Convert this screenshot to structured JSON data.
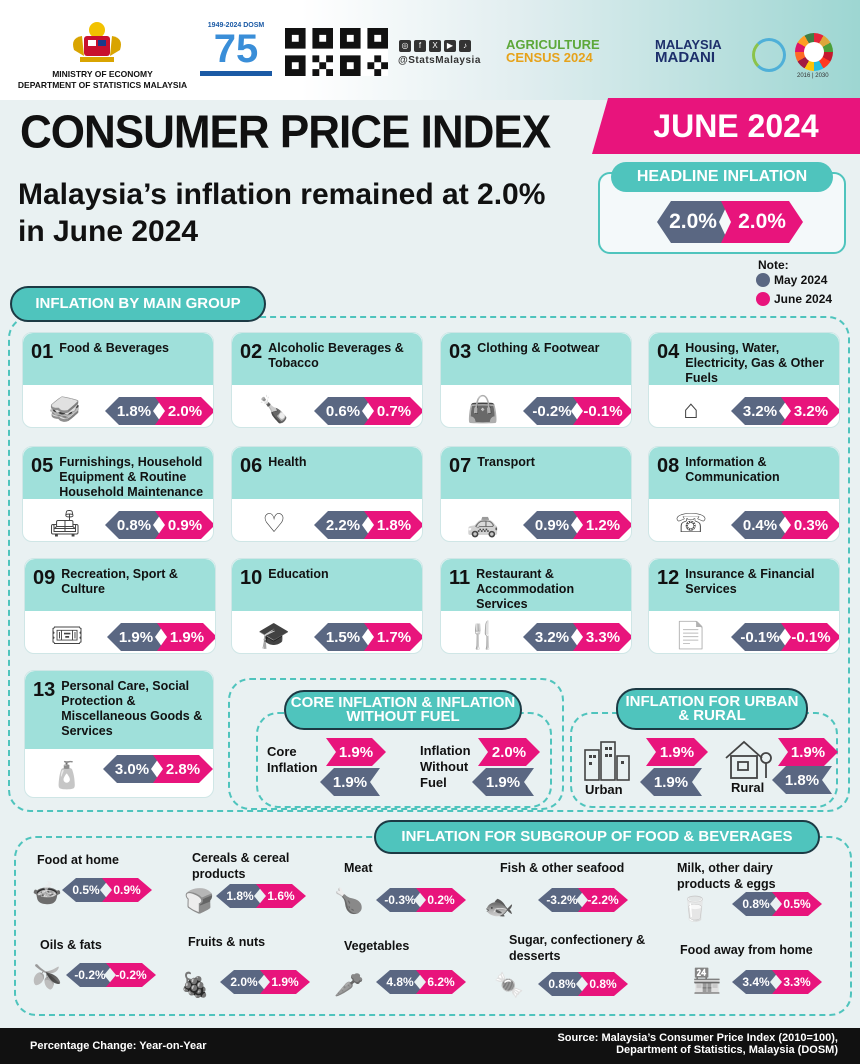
{
  "header": {
    "ministry_line1": "MINISTRY OF ECONOMY",
    "ministry_line2": "DEPARTMENT OF STATISTICS MALAYSIA",
    "dosm_years": "1949-2024 DOSM",
    "social_handle": "@StatsMalaysia",
    "agri_line1": "AGRICULTURE",
    "agri_line2": "CENSUS 2024",
    "madani_line1": "MALAYSIA",
    "madani_line2": "MADANI",
    "sdg_years": "2016 | 2030"
  },
  "title": "CONSUMER PRICE INDEX",
  "month": "JUNE 2024",
  "headline_text": "Malaysia’s inflation remained at 2.0% in June 2024",
  "headline_inflation": {
    "label": "HEADLINE INFLATION",
    "may": "2.0%",
    "june": "2.0%"
  },
  "note": {
    "label": "Note:",
    "may_label": "May 2024",
    "june_label": "June 2024",
    "may_color": "#5a6782",
    "june_color": "#e8147c"
  },
  "main_group": {
    "title": "INFLATION BY MAIN GROUP",
    "items": [
      {
        "num": "01",
        "label": "Food & Beverages",
        "may": "1.8%",
        "june": "2.0%",
        "icon": "food-icon"
      },
      {
        "num": "02",
        "label": "Alcoholic Beverages & Tobacco",
        "may": "0.6%",
        "june": "0.7%",
        "icon": "bottle-icon"
      },
      {
        "num": "03",
        "label": "Clothing & Footwear",
        "may": "-0.2%",
        "june": "-0.1%",
        "icon": "clothing-icon"
      },
      {
        "num": "04",
        "label": "Housing, Water, Electricity, Gas & Other Fuels",
        "may": "3.2%",
        "june": "3.2%",
        "icon": "house-icon"
      },
      {
        "num": "05",
        "label": "Furnishings, Household Equipment & Routine Household Maintenance",
        "may": "0.8%",
        "june": "0.9%",
        "icon": "furniture-icon"
      },
      {
        "num": "06",
        "label": "Health",
        "may": "2.2%",
        "june": "1.8%",
        "icon": "heartbeat-icon"
      },
      {
        "num": "07",
        "label": "Transport",
        "may": "0.9%",
        "june": "1.2%",
        "icon": "taxi-icon"
      },
      {
        "num": "08",
        "label": "Information & Communication",
        "may": "0.4%",
        "june": "0.3%",
        "icon": "phone-icon"
      },
      {
        "num": "09",
        "label": "Recreation, Sport & Culture",
        "may": "1.9%",
        "june": "1.9%",
        "icon": "tickets-icon"
      },
      {
        "num": "10",
        "label": "Education",
        "may": "1.5%",
        "june": "1.7%",
        "icon": "graduation-icon"
      },
      {
        "num": "11",
        "label": "Restaurant & Accommodation Services",
        "may": "3.2%",
        "june": "3.3%",
        "icon": "dining-icon"
      },
      {
        "num": "12",
        "label": "Insurance & Financial Services",
        "may": "-0.1%",
        "june": "-0.1%",
        "icon": "insurance-icon"
      },
      {
        "num": "13",
        "label": "Personal Care, Social Protection & Miscellaneous Goods & Services",
        "may": "3.0%",
        "june": "2.8%",
        "icon": "personal-care-icon"
      }
    ]
  },
  "core": {
    "title": "CORE INFLATION & INFLATION WITHOUT FUEL",
    "core_label": "Core Inflation",
    "core_may": "1.9%",
    "core_june": "1.9%",
    "nofuel_label": "Inflation Without Fuel",
    "nofuel_may": "1.9%",
    "nofuel_june": "2.0%"
  },
  "urban_rural": {
    "title": "INFLATION FOR URBAN & RURAL",
    "urban_label": "Urban",
    "urban_may": "1.9%",
    "urban_june": "1.9%",
    "rural_label": "Rural",
    "rural_may": "1.8%",
    "rural_june": "1.9%"
  },
  "food": {
    "title": "INFLATION FOR SUBGROUP OF FOOD & BEVERAGES",
    "items": [
      {
        "label": "Food at home",
        "may": "0.5%",
        "june": "0.9%"
      },
      {
        "label": "Cereals & cereal products",
        "may": "1.8%",
        "june": "1.6%"
      },
      {
        "label": "Meat",
        "may": "-0.3%",
        "june": "0.2%"
      },
      {
        "label": "Fish & other seafood",
        "may": "-3.2%",
        "june": "-2.2%"
      },
      {
        "label": "Milk, other dairy products & eggs",
        "may": "0.8%",
        "june": "0.5%"
      },
      {
        "label": "Oils & fats",
        "may": "-0.2%",
        "june": "-0.2%"
      },
      {
        "label": "Fruits & nuts",
        "may": "2.0%",
        "june": "1.9%"
      },
      {
        "label": "Vegetables",
        "may": "4.8%",
        "june": "6.2%"
      },
      {
        "label": "Sugar, confectionery & desserts",
        "may": "0.8%",
        "june": "0.8%"
      },
      {
        "label": "Food away from home",
        "may": "3.4%",
        "june": "3.3%"
      }
    ]
  },
  "footer": {
    "left": "Percentage Change: Year-on-Year",
    "source1": "Source: Malaysia’s Consumer Price Index (2010=100),",
    "source2": "Department of Statistics, Malaysia (DOSM)"
  }
}
